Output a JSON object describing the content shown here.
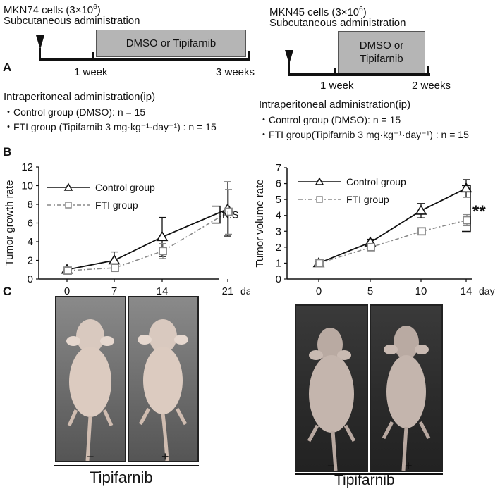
{
  "panel_a": {
    "letter": "A",
    "left": {
      "cells_prefix": "MKN74 cells (3×10",
      "cells_exp": "6",
      "cells_suffix": ")",
      "admin": "Subcutaneous administration",
      "box_label": "DMSO or Tipifarnib",
      "t1": "1 week",
      "t2": "3 weeks",
      "ip_title": "Intraperitoneal administration(ip)",
      "control_line": "・Control group (DMSO): n = 15",
      "fti_line": "・FTI group (Tipifarnib 3 mg·kg⁻¹·day⁻¹) : n = 15"
    },
    "right": {
      "cells_prefix": "MKN45 cells (3×10",
      "cells_exp": "6",
      "cells_suffix": ")",
      "admin": "Subcutaneous administration",
      "box_line1": "DMSO or",
      "box_line2": "Tipifarnib",
      "t1": "1 week",
      "t2": "2 weeks",
      "ip_title": "Intraperitoneal administration(ip)",
      "control_line": "・Control group (DMSO): n = 15",
      "fti_line": "・FTI group(Tipifarnib 3 mg·kg⁻¹·day⁻¹) : n = 15"
    }
  },
  "panel_b": {
    "letter": "B"
  },
  "panel_c": {
    "letter": "C",
    "left": {
      "minus": "−",
      "plus": "+",
      "drug": "Tipifarnib"
    },
    "right": {
      "minus": "−",
      "plus": "+",
      "drug": "Tipifarnib"
    }
  },
  "chart_data": [
    {
      "type": "line",
      "ylabel": "Tumor growth rate",
      "xlabel": "day",
      "x": [
        0,
        7,
        14,
        21
      ],
      "ylim": [
        0,
        12
      ],
      "yticks": [
        0,
        2,
        4,
        6,
        8,
        10,
        12
      ],
      "significance": "N.S",
      "legend_position": "top-left",
      "series": [
        {
          "name": "Control group",
          "marker": "triangle",
          "style": "solid",
          "color": "#111111",
          "values": [
            1.0,
            2.0,
            4.5,
            7.5
          ],
          "err": [
            0.2,
            0.9,
            2.1,
            2.9
          ]
        },
        {
          "name": "FTI group",
          "marker": "square",
          "style": "dashdot",
          "color": "#888888",
          "values": [
            0.9,
            1.2,
            3.0,
            7.2
          ],
          "err": [
            0.2,
            0.4,
            0.8,
            2.4
          ]
        }
      ]
    },
    {
      "type": "line",
      "ylabel": "Tumor volume rate",
      "xlabel": "day",
      "x": [
        0,
        5,
        10,
        14
      ],
      "ylim": [
        0,
        7
      ],
      "yticks": [
        0,
        1,
        2,
        3,
        4,
        5,
        6,
        7
      ],
      "significance": "**",
      "legend_position": "top-left",
      "series": [
        {
          "name": "Control group",
          "marker": "triangle",
          "style": "solid",
          "color": "#111111",
          "values": [
            1.0,
            2.3,
            4.3,
            5.7
          ],
          "err": [
            0.1,
            0.2,
            0.45,
            0.55
          ]
        },
        {
          "name": "FTI group",
          "marker": "square",
          "style": "dashdot",
          "color": "#888888",
          "values": [
            1.0,
            2.0,
            3.0,
            3.7
          ],
          "err": [
            0.1,
            0.15,
            0.2,
            0.35
          ]
        }
      ]
    }
  ]
}
